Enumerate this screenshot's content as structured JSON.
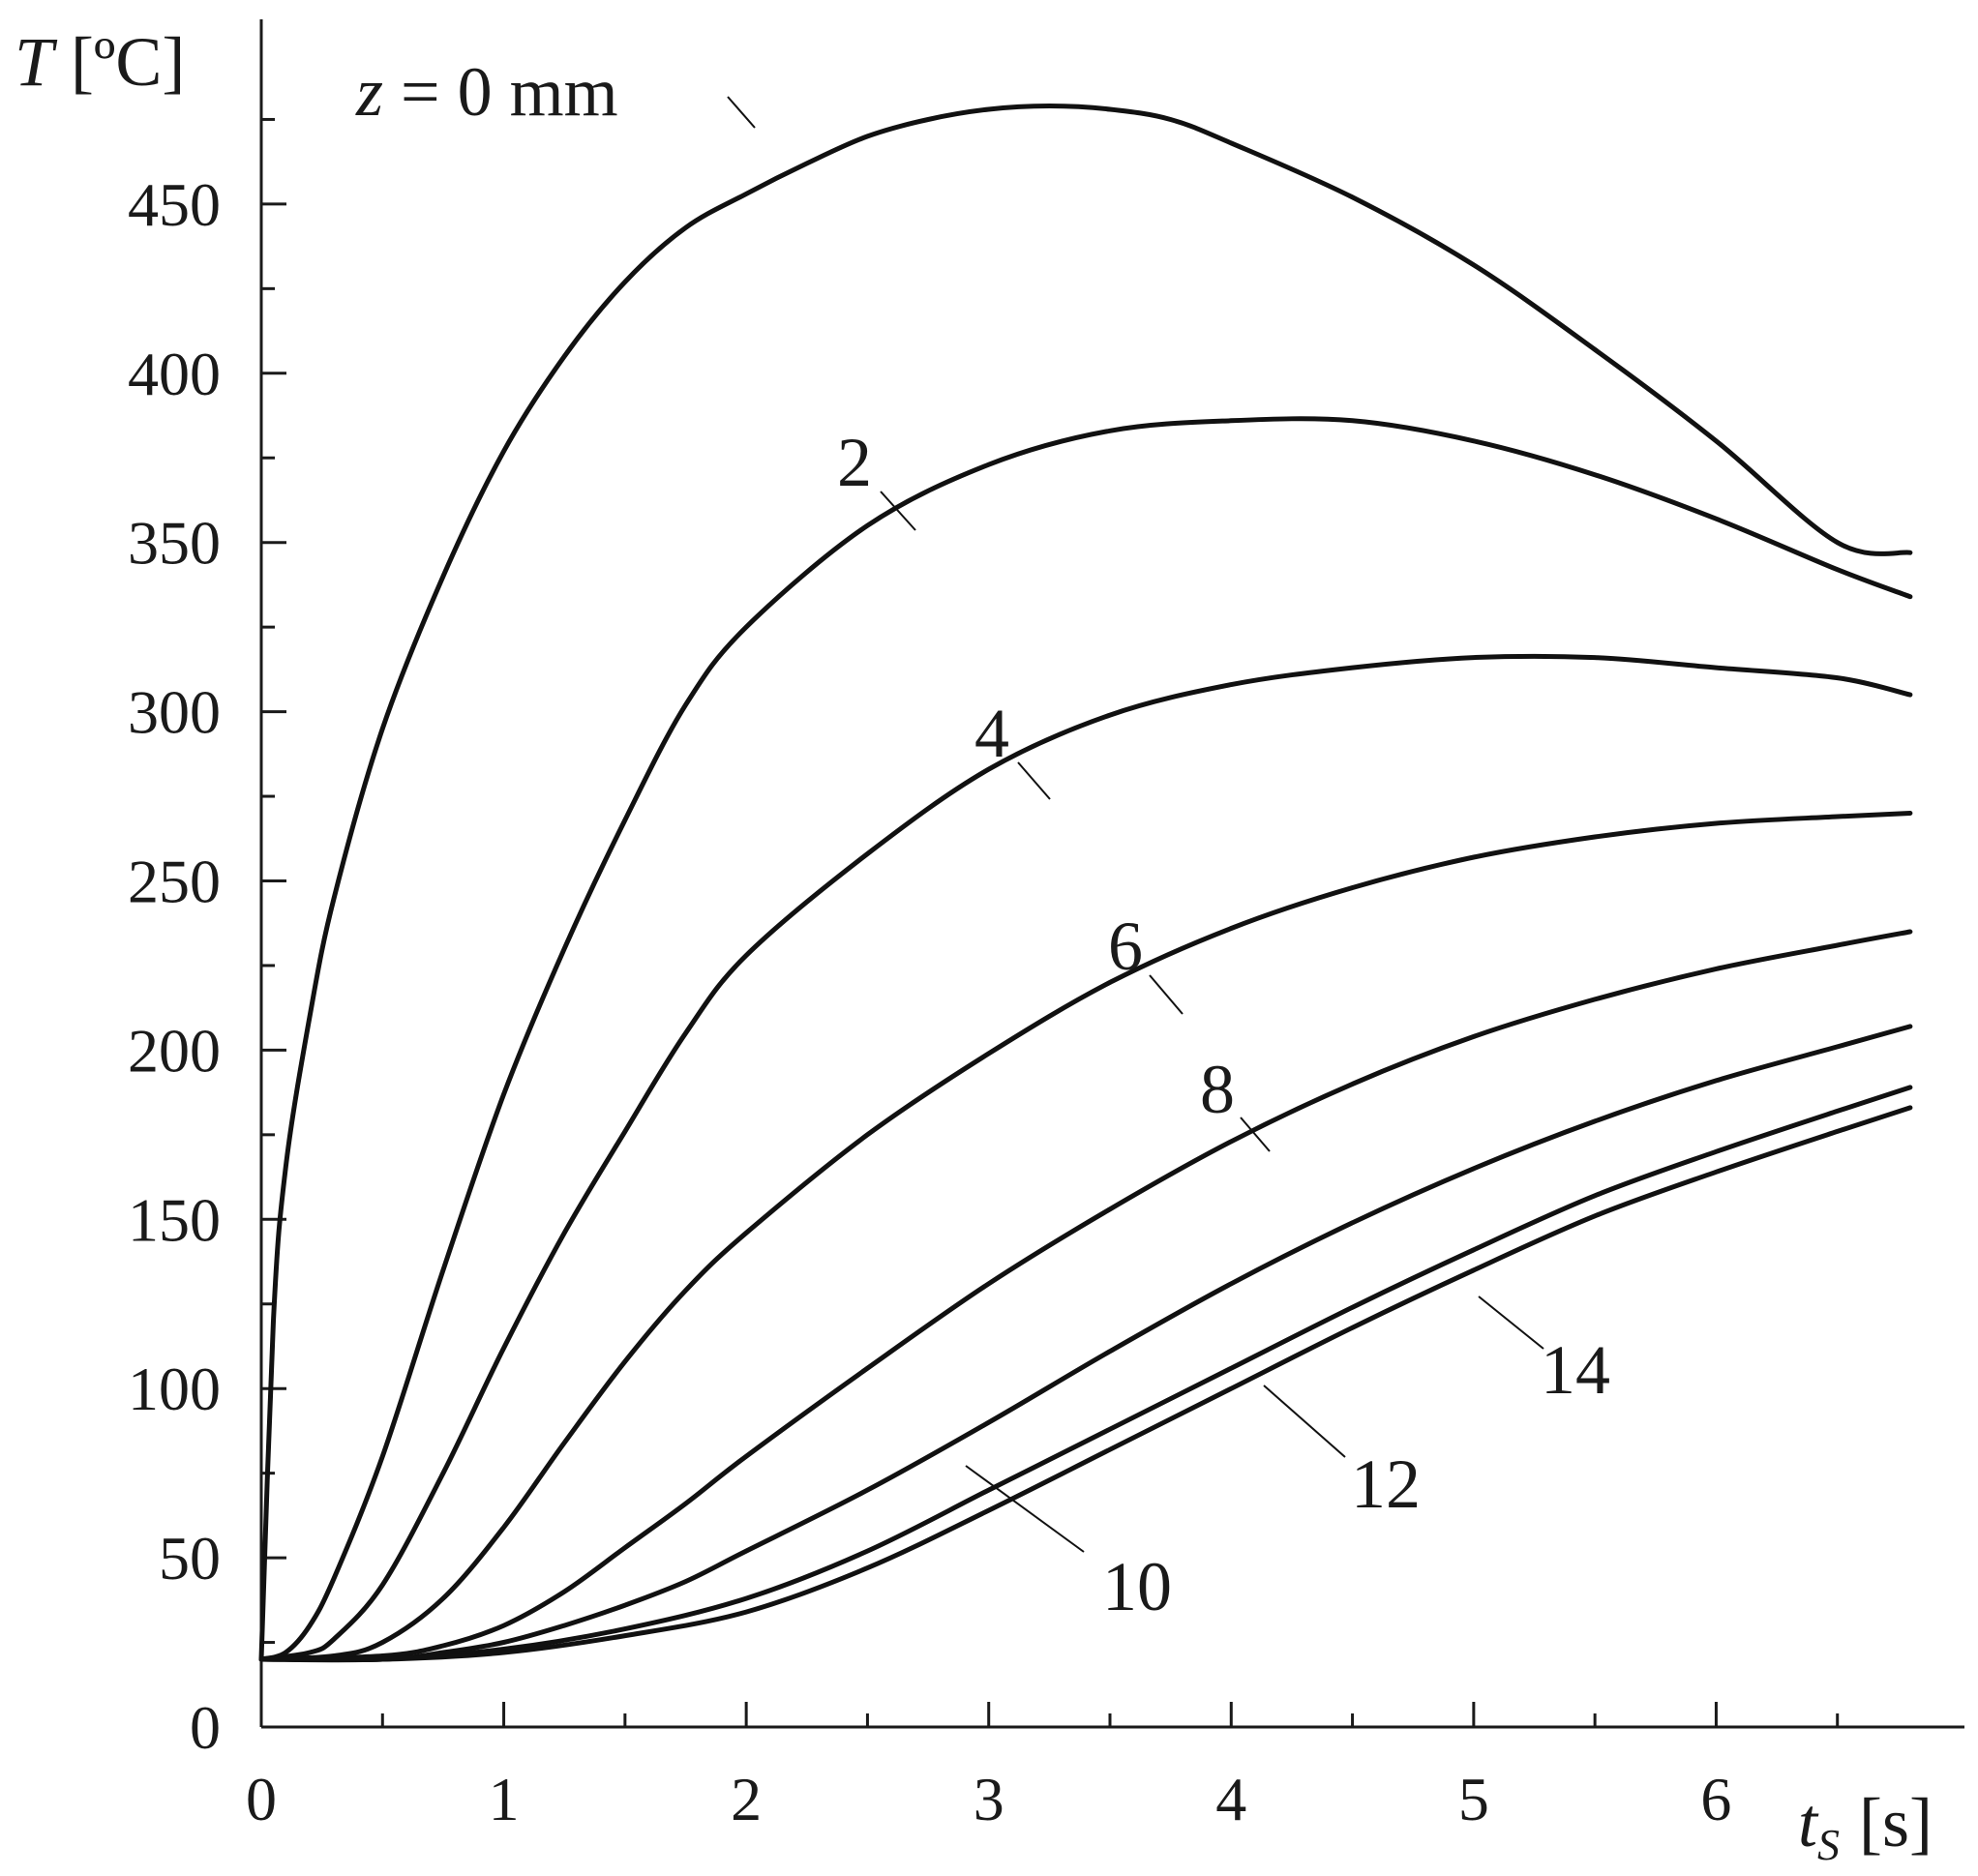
{
  "chart_data": {
    "type": "line",
    "title": "",
    "xlabel": {
      "symbol": "t",
      "subscript": "S",
      "unit": "[s]"
    },
    "ylabel": {
      "symbol": "T",
      "unit": "[ºC]"
    },
    "xlim": [
      0,
      7
    ],
    "ylim": [
      0,
      500
    ],
    "x_ticks": [
      0,
      1,
      2,
      3,
      4,
      5,
      6
    ],
    "y_ticks": [
      0,
      50,
      100,
      150,
      200,
      250,
      300,
      350,
      400,
      450
    ],
    "grid": false,
    "legend": "none",
    "series": [
      {
        "name": "z = 0 mm",
        "label": {
          "italic": "z",
          "text": " = 0 mm"
        },
        "x": [
          0,
          0.05,
          0.1,
          0.2,
          0.3,
          0.5,
          0.75,
          1,
          1.25,
          1.5,
          1.75,
          2,
          2.25,
          2.5,
          2.75,
          3,
          3.25,
          3.5,
          3.75,
          4,
          4.5,
          5,
          5.5,
          6,
          6.5,
          6.8
        ],
        "y": [
          20,
          120,
          165,
          210,
          245,
          295,
          340,
          377,
          405,
          427,
          443,
          453,
          462,
          470,
          475,
          478,
          479,
          478,
          475,
          468,
          452,
          432,
          407,
          380,
          350,
          347
        ]
      },
      {
        "name": "2",
        "label": {
          "italic": "",
          "text": "2"
        },
        "x": [
          0,
          0.1,
          0.2,
          0.3,
          0.5,
          0.75,
          1,
          1.25,
          1.5,
          1.75,
          2,
          2.5,
          3,
          3.5,
          4,
          4.5,
          5,
          5.5,
          6,
          6.5,
          6.8
        ],
        "y": [
          20,
          22,
          30,
          44,
          80,
          135,
          187,
          230,
          268,
          302,
          325,
          355,
          373,
          383,
          386,
          386,
          380,
          370,
          357,
          342,
          334
        ]
      },
      {
        "name": "4",
        "label": {
          "italic": "",
          "text": "4"
        },
        "x": [
          0,
          0.2,
          0.3,
          0.5,
          0.75,
          1,
          1.25,
          1.5,
          1.75,
          2,
          2.5,
          3,
          3.5,
          4,
          4.5,
          5,
          5.5,
          6,
          6.5,
          6.8
        ],
        "y": [
          20,
          22,
          26,
          42,
          75,
          112,
          146,
          176,
          205,
          228,
          258,
          283,
          299,
          308,
          313,
          316,
          316,
          313,
          310,
          305
        ]
      },
      {
        "name": "6",
        "label": {
          "italic": "",
          "text": "6"
        },
        "x": [
          0,
          0.3,
          0.5,
          0.75,
          1,
          1.25,
          1.5,
          1.75,
          2,
          2.5,
          3,
          3.5,
          4,
          4.5,
          5,
          5.5,
          6,
          6.5,
          6.8
        ],
        "y": [
          20,
          21,
          25,
          38,
          59,
          84,
          108,
          129,
          146,
          175,
          199,
          220,
          236,
          248,
          257,
          263,
          267,
          269,
          270
        ]
      },
      {
        "name": "8",
        "label": {
          "italic": "",
          "text": "8"
        },
        "x": [
          0,
          0.5,
          0.75,
          1,
          1.25,
          1.5,
          1.75,
          2,
          2.5,
          3,
          3.5,
          4,
          4.5,
          5,
          5.5,
          6,
          6.5,
          6.8
        ],
        "y": [
          20,
          21,
          24,
          30,
          40,
          53,
          66,
          80,
          106,
          131,
          153,
          173,
          190,
          204,
          215,
          224,
          231,
          235
        ]
      },
      {
        "name": "10",
        "label": {
          "italic": "",
          "text": "10"
        },
        "x": [
          0,
          0.5,
          0.75,
          1,
          1.25,
          1.5,
          1.75,
          2,
          2.5,
          3,
          3.5,
          4,
          4.5,
          5,
          5.5,
          6,
          6.5,
          6.8
        ],
        "y": [
          20,
          20,
          22,
          25,
          30,
          36,
          43,
          52,
          70,
          90,
          111,
          131,
          149,
          165,
          179,
          191,
          201,
          207
        ]
      },
      {
        "name": "12",
        "label": {
          "italic": "",
          "text": "12"
        },
        "x": [
          0,
          0.5,
          1,
          1.5,
          2,
          2.5,
          3,
          3.5,
          4,
          4.5,
          5,
          5.5,
          6,
          6.5,
          6.8
        ],
        "y": [
          20,
          20,
          23,
          29,
          38,
          52,
          70,
          88,
          106,
          124,
          141,
          157,
          170,
          182,
          189
        ]
      },
      {
        "name": "14",
        "label": {
          "italic": "",
          "text": "14"
        },
        "x": [
          0,
          0.5,
          1,
          1.5,
          2,
          2.5,
          3,
          3.5,
          4,
          4.5,
          5,
          5.5,
          6,
          6.5,
          6.8
        ],
        "y": [
          20,
          20,
          22,
          27,
          34,
          47,
          64,
          82,
          100,
          118,
          135,
          151,
          164,
          176,
          183
        ]
      }
    ]
  }
}
